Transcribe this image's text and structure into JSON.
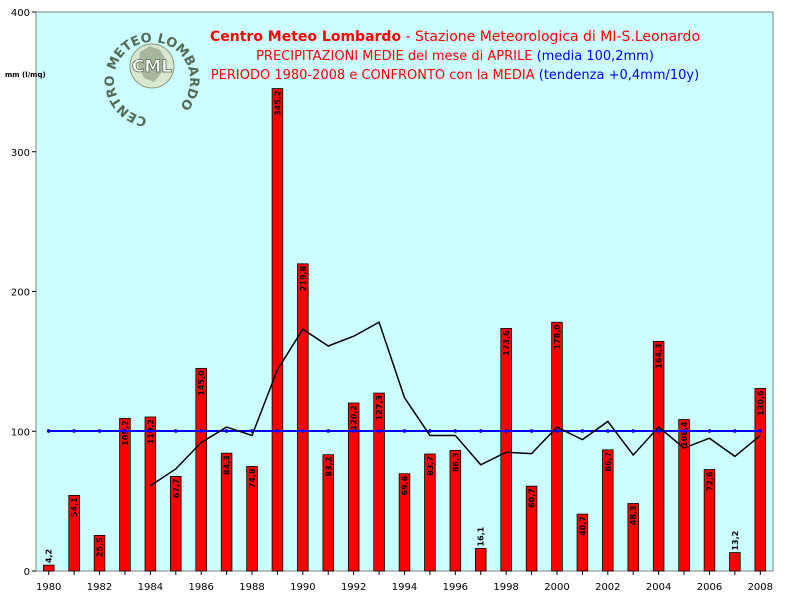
{
  "chart_data": {
    "type": "bar",
    "title_parts": [
      {
        "text": "Centro Meteo Lombardo",
        "color": "#ff0000",
        "bold": true
      },
      {
        "text": " - Stazione Meteorologica di MI-S.Leonardo",
        "color": "#ff0000",
        "bold": false
      }
    ],
    "subtitle1_parts": [
      {
        "text": "PRECIPITAZIONI MEDIE del mese di APRILE ",
        "color": "#ff0000"
      },
      {
        "text": "(media 100,2mm)",
        "color": "#0000ff"
      }
    ],
    "subtitle2_parts": [
      {
        "text": "PERIODO 1980-2008 e CONFRONTO con la MEDIA  ",
        "color": "#ff0000"
      },
      {
        "text": "(tendenza +0,4mm/10y)",
        "color": "#0000ff"
      }
    ],
    "ylabel": "mm (l/mq)",
    "ylim": [
      0,
      400
    ],
    "yticks": [
      "0",
      "100",
      "200",
      "300",
      "400"
    ],
    "x": [
      1980,
      1981,
      1982,
      1983,
      1984,
      1985,
      1986,
      1987,
      1988,
      1989,
      1990,
      1991,
      1992,
      1993,
      1994,
      1995,
      1996,
      1997,
      1998,
      1999,
      2000,
      2001,
      2002,
      2003,
      2004,
      2005,
      2006,
      2007,
      2008
    ],
    "xtick_labels": [
      "1980",
      "1982",
      "1984",
      "1986",
      "1988",
      "1990",
      "1992",
      "1994",
      "1996",
      "1998",
      "2000",
      "2002",
      "2004",
      "2006",
      "2008"
    ],
    "series": [
      {
        "type": "bar",
        "color": "#ff0000",
        "values": [
          4.2,
          54.1,
          25.5,
          109.2,
          110.2,
          67.7,
          145.0,
          84.3,
          74.8,
          345.2,
          219.8,
          83.2,
          120.2,
          127.3,
          69.6,
          83.7,
          86.3,
          16.1,
          173.6,
          60.7,
          178.0,
          40.7,
          86.7,
          48.3,
          164.3,
          108.4,
          72.6,
          13.2,
          130.6
        ],
        "labels": [
          "4,2",
          "54,1",
          "25,5",
          "109,2",
          "110,2",
          "67,7",
          "145,0",
          "84,3",
          "74,8",
          "345,2",
          "219,8",
          "83,2",
          "120,2",
          "127,3",
          "69,6",
          "83,7",
          "86,3",
          "16,1",
          "173,6",
          "60,7",
          "178,0",
          "40,7",
          "86,7",
          "48,3",
          "164,3",
          "108,4",
          "72,6",
          "13,2",
          "130,6"
        ]
      },
      {
        "type": "line",
        "color": "#000000",
        "values": [
          null,
          null,
          null,
          null,
          61,
          73,
          92,
          103,
          97,
          144,
          173,
          161,
          168,
          178,
          124,
          97,
          97,
          76,
          85,
          84,
          103,
          94,
          107,
          83,
          103,
          88,
          95,
          82,
          97
        ]
      },
      {
        "type": "line",
        "color": "#0000ff",
        "marker": "dot",
        "values": [
          100.2,
          100.2,
          100.2,
          100.2,
          100.2,
          100.2,
          100.2,
          100.2,
          100.2,
          100.2,
          100.2,
          100.2,
          100.2,
          100.2,
          100.2,
          100.2,
          100.2,
          100.2,
          100.2,
          100.2,
          100.2,
          100.2,
          100.2,
          100.2,
          100.2,
          100.2,
          100.2,
          100.2,
          100.2
        ]
      }
    ],
    "plot_background": "#ccffff",
    "grid": false
  },
  "logo": {
    "ring_text": "CENTRO METEO LOMBARDO",
    "center_text": "CML"
  }
}
